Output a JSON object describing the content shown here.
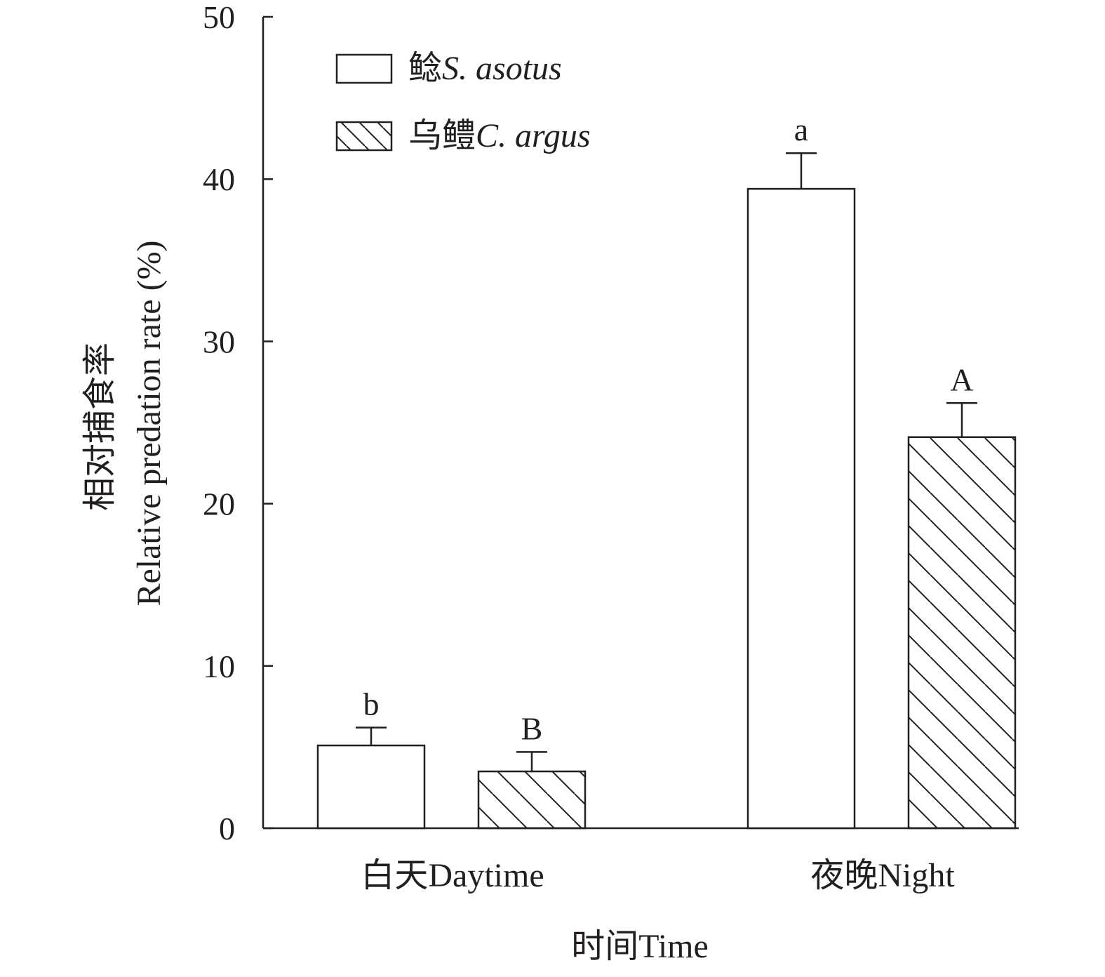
{
  "chart_data": {
    "type": "bar",
    "xlabel": "时间Time",
    "ylabel_cn": "相对捕食率",
    "ylabel_en": "Relative predation rate (%)",
    "ylim": [
      0,
      50
    ],
    "yticks": [
      0,
      10,
      20,
      30,
      40,
      50
    ],
    "grid": false,
    "legend_position": "top-left",
    "categories": [
      "白天Daytime",
      "夜晚Night"
    ],
    "series": [
      {
        "name_cn": "鲶",
        "name_latin": "S. asotus",
        "pattern": "open",
        "values": [
          5.1,
          39.4
        ],
        "errors": [
          1.1,
          2.2
        ],
        "labels": [
          "b",
          "a"
        ]
      },
      {
        "name_cn": "乌鳢",
        "name_latin": "C. argus",
        "pattern": "hatched",
        "values": [
          3.5,
          24.1
        ],
        "errors": [
          1.2,
          2.1
        ],
        "labels": [
          "B",
          "A"
        ]
      }
    ],
    "colors": {
      "ink": "#231f20",
      "background": "#ffffff"
    }
  }
}
